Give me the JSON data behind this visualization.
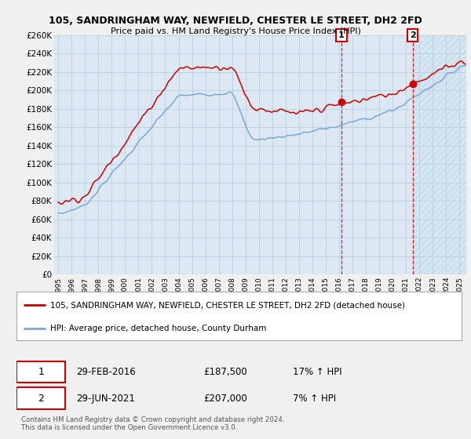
{
  "title": "105, SANDRINGHAM WAY, NEWFIELD, CHESTER LE STREET, DH2 2FD",
  "subtitle": "Price paid vs. HM Land Registry's House Price Index (HPI)",
  "ylim": [
    0,
    260000
  ],
  "yticks": [
    0,
    20000,
    40000,
    60000,
    80000,
    100000,
    120000,
    140000,
    160000,
    180000,
    200000,
    220000,
    240000,
    260000
  ],
  "ytick_labels": [
    "£0",
    "£20K",
    "£40K",
    "£60K",
    "£80K",
    "£100K",
    "£120K",
    "£140K",
    "£160K",
    "£180K",
    "£200K",
    "£220K",
    "£240K",
    "£260K"
  ],
  "red_line_label": "105, SANDRINGHAM WAY, NEWFIELD, CHESTER LE STREET, DH2 2FD (detached house)",
  "blue_line_label": "HPI: Average price, detached house, County Durham",
  "sale1_date_num": 2016.167,
  "sale1_price": 187500,
  "sale1_label": "29-FEB-2016",
  "sale1_price_str": "£187,500",
  "sale1_hpi": "17% ↑ HPI",
  "sale2_date_num": 2021.5,
  "sale2_price": 207000,
  "sale2_label": "29-JUN-2021",
  "sale2_price_str": "£207,000",
  "sale2_hpi": "7% ↑ HPI",
  "footer": "Contains HM Land Registry data © Crown copyright and database right 2024.\nThis data is licensed under the Open Government Licence v3.0.",
  "red_color": "#cc0000",
  "blue_color": "#7ba7d0",
  "plot_bg": "#dce9f5",
  "grid_color": "#b8cfe0",
  "hatch_color": "#c5d8ea"
}
